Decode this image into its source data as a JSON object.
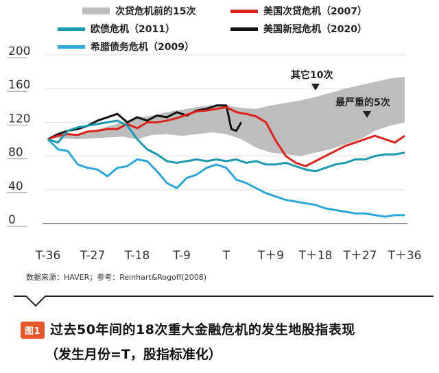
{
  "legend": [
    {
      "label": "次贷危机前的15次",
      "color": "#bdbdbd",
      "kind": "band"
    },
    {
      "label": "美国次贷危机（2007）",
      "color": "#e0201b",
      "kind": "line"
    },
    {
      "label": "欧债危机（2011）",
      "color": "#1a9ab0",
      "kind": "line"
    },
    {
      "label": "美国新冠危机（2020）",
      "color": "#111111",
      "kind": "line"
    },
    {
      "label": "希腊债务危机（2009）",
      "color": "#2ca7dc",
      "kind": "line"
    }
  ],
  "annotations": [
    {
      "label": "其它10次"
    },
    {
      "label": "最严重的5次"
    }
  ],
  "source": "数据来源：HAVER；参考：Reinhart&Rogoff(2008)",
  "caption": {
    "badge": "图1",
    "line1": "过去50年间的18次重大金融危机的发生地股指表现",
    "line2": "（发生月份=T，股指标准化）"
  },
  "chart_data": {
    "type": "line",
    "xlabel": "",
    "ylabel": "",
    "xlim": [
      -36,
      36
    ],
    "ylim": [
      0,
      200
    ],
    "x_ticks": [
      {
        "x": -36,
        "label": "T-36"
      },
      {
        "x": -27,
        "label": "T-27"
      },
      {
        "x": -18,
        "label": "T-18"
      },
      {
        "x": -9,
        "label": "T-9"
      },
      {
        "x": 0,
        "label": "T"
      },
      {
        "x": 9,
        "label": "T＋9"
      },
      {
        "x": 18,
        "label": "T＋18"
      },
      {
        "x": 27,
        "label": "T＋27"
      },
      {
        "x": 36,
        "label": "T＋36"
      }
    ],
    "y_ticks": [
      0,
      40,
      80,
      120,
      160,
      200
    ],
    "band": {
      "name": "次贷危机前的15次",
      "color": "#bdbdbd",
      "x": [
        -36,
        -33,
        -30,
        -27,
        -24,
        -21,
        -18,
        -15,
        -12,
        -9,
        -6,
        -3,
        0,
        3,
        6,
        9,
        12,
        15,
        18,
        21,
        24,
        27,
        30,
        33,
        36
      ],
      "upper": [
        102,
        104,
        106,
        110,
        115,
        120,
        125,
        128,
        132,
        135,
        138,
        140,
        140,
        137,
        136,
        140,
        143,
        146,
        150,
        155,
        160,
        164,
        168,
        172,
        174
      ],
      "lower": [
        102,
        101,
        100,
        101,
        102,
        103,
        100,
        105,
        106,
        104,
        106,
        108,
        106,
        100,
        90,
        84,
        82,
        80,
        84,
        88,
        94,
        100,
        110,
        116,
        120
      ]
    },
    "series": [
      {
        "name": "美国次贷危机（2007）",
        "color": "#e0201b",
        "x": [
          -36,
          -34,
          -32,
          -30,
          -28,
          -26,
          -24,
          -22,
          -20,
          -18,
          -16,
          -14,
          -12,
          -10,
          -8,
          -6,
          -4,
          -2,
          0,
          2,
          4,
          6,
          8,
          10,
          12,
          14,
          16,
          18,
          20,
          22,
          24,
          26,
          28,
          30,
          32,
          34,
          36
        ],
        "values": [
          100,
          104,
          106,
          105,
          109,
          110,
          112,
          112,
          118,
          113,
          120,
          120,
          122,
          125,
          129,
          133,
          134,
          136,
          138,
          132,
          130,
          127,
          120,
          98,
          80,
          72,
          68,
          74,
          80,
          86,
          92,
          96,
          100,
          104,
          100,
          96,
          104
        ]
      },
      {
        "name": "欧债危机（2011）",
        "color": "#1a9ab0",
        "x": [
          -36,
          -34,
          -32,
          -30,
          -28,
          -26,
          -24,
          -22,
          -20,
          -18,
          -16,
          -14,
          -12,
          -10,
          -8,
          -6,
          -4,
          -2,
          0,
          2,
          4,
          6,
          8,
          10,
          12,
          14,
          16,
          18,
          20,
          22,
          24,
          26,
          28,
          30,
          32,
          34,
          36
        ],
        "values": [
          100,
          96,
          110,
          114,
          116,
          118,
          120,
          122,
          116,
          100,
          88,
          82,
          74,
          72,
          74,
          76,
          74,
          76,
          74,
          76,
          72,
          74,
          70,
          70,
          72,
          68,
          64,
          62,
          66,
          70,
          72,
          76,
          76,
          80,
          82,
          82,
          84
        ]
      },
      {
        "name": "美国新冠危机（2020）",
        "color": "#111111",
        "x": [
          -36,
          -34,
          -32,
          -30,
          -28,
          -26,
          -24,
          -22,
          -20,
          -18,
          -16,
          -14,
          -12,
          -10,
          -8,
          -6,
          -4,
          -2,
          0,
          1,
          2,
          3
        ],
        "values": [
          100,
          106,
          110,
          112,
          116,
          122,
          126,
          130,
          120,
          126,
          122,
          128,
          126,
          132,
          128,
          134,
          136,
          140,
          140,
          112,
          110,
          120
        ]
      },
      {
        "name": "希腊债务危机（2009）",
        "color": "#2ca7dc",
        "x": [
          -36,
          -34,
          -32,
          -30,
          -28,
          -26,
          -24,
          -22,
          -20,
          -18,
          -16,
          -14,
          -12,
          -10,
          -8,
          -6,
          -4,
          -2,
          0,
          2,
          4,
          6,
          8,
          10,
          12,
          14,
          16,
          18,
          20,
          22,
          24,
          26,
          28,
          30,
          32,
          34,
          36
        ],
        "values": [
          100,
          88,
          86,
          70,
          66,
          64,
          56,
          66,
          68,
          76,
          74,
          62,
          48,
          42,
          54,
          58,
          66,
          70,
          66,
          52,
          48,
          42,
          36,
          32,
          28,
          26,
          24,
          22,
          18,
          16,
          14,
          12,
          12,
          10,
          8,
          10,
          10
        ]
      }
    ]
  }
}
